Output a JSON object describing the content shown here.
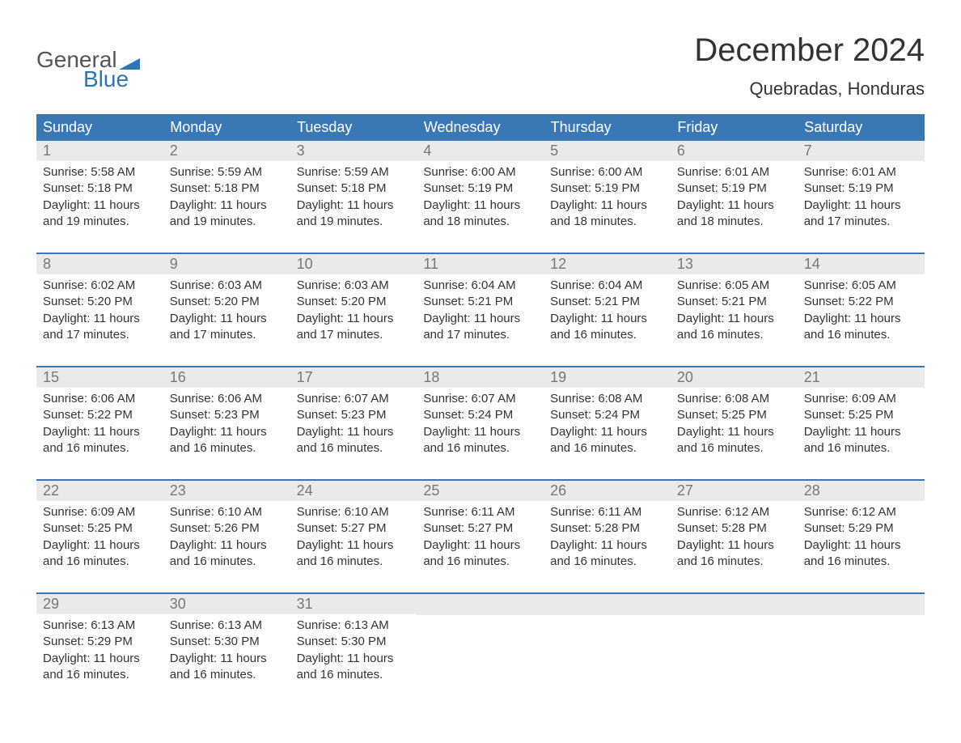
{
  "brand": {
    "part1": "General",
    "part2": "Blue",
    "text_color": "#555555",
    "accent_color": "#2f75b5"
  },
  "title": "December 2024",
  "location": "Quebradas, Honduras",
  "colors": {
    "header_bg": "#3a78b5",
    "header_text": "#ffffff",
    "daynum_bg": "#eaeaea",
    "daynum_text": "#777777",
    "body_text": "#333333",
    "page_bg": "#ffffff",
    "row_divider": "#3a78b5"
  },
  "layout": {
    "columns": 7,
    "rows": 5,
    "cell_text_fontsize": 15,
    "header_fontsize": 18,
    "title_fontsize": 40,
    "location_fontsize": 22
  },
  "weekday_labels": [
    "Sunday",
    "Monday",
    "Tuesday",
    "Wednesday",
    "Thursday",
    "Friday",
    "Saturday"
  ],
  "field_labels": {
    "sunrise": "Sunrise:",
    "sunset": "Sunset:",
    "daylight": "Daylight:"
  },
  "weeks": [
    [
      {
        "n": "1",
        "sunrise": "5:58 AM",
        "sunset": "5:18 PM",
        "daylight_l1": "11 hours",
        "daylight_l2": "and 19 minutes."
      },
      {
        "n": "2",
        "sunrise": "5:59 AM",
        "sunset": "5:18 PM",
        "daylight_l1": "11 hours",
        "daylight_l2": "and 19 minutes."
      },
      {
        "n": "3",
        "sunrise": "5:59 AM",
        "sunset": "5:18 PM",
        "daylight_l1": "11 hours",
        "daylight_l2": "and 19 minutes."
      },
      {
        "n": "4",
        "sunrise": "6:00 AM",
        "sunset": "5:19 PM",
        "daylight_l1": "11 hours",
        "daylight_l2": "and 18 minutes."
      },
      {
        "n": "5",
        "sunrise": "6:00 AM",
        "sunset": "5:19 PM",
        "daylight_l1": "11 hours",
        "daylight_l2": "and 18 minutes."
      },
      {
        "n": "6",
        "sunrise": "6:01 AM",
        "sunset": "5:19 PM",
        "daylight_l1": "11 hours",
        "daylight_l2": "and 18 minutes."
      },
      {
        "n": "7",
        "sunrise": "6:01 AM",
        "sunset": "5:19 PM",
        "daylight_l1": "11 hours",
        "daylight_l2": "and 17 minutes."
      }
    ],
    [
      {
        "n": "8",
        "sunrise": "6:02 AM",
        "sunset": "5:20 PM",
        "daylight_l1": "11 hours",
        "daylight_l2": "and 17 minutes."
      },
      {
        "n": "9",
        "sunrise": "6:03 AM",
        "sunset": "5:20 PM",
        "daylight_l1": "11 hours",
        "daylight_l2": "and 17 minutes."
      },
      {
        "n": "10",
        "sunrise": "6:03 AM",
        "sunset": "5:20 PM",
        "daylight_l1": "11 hours",
        "daylight_l2": "and 17 minutes."
      },
      {
        "n": "11",
        "sunrise": "6:04 AM",
        "sunset": "5:21 PM",
        "daylight_l1": "11 hours",
        "daylight_l2": "and 17 minutes."
      },
      {
        "n": "12",
        "sunrise": "6:04 AM",
        "sunset": "5:21 PM",
        "daylight_l1": "11 hours",
        "daylight_l2": "and 16 minutes."
      },
      {
        "n": "13",
        "sunrise": "6:05 AM",
        "sunset": "5:21 PM",
        "daylight_l1": "11 hours",
        "daylight_l2": "and 16 minutes."
      },
      {
        "n": "14",
        "sunrise": "6:05 AM",
        "sunset": "5:22 PM",
        "daylight_l1": "11 hours",
        "daylight_l2": "and 16 minutes."
      }
    ],
    [
      {
        "n": "15",
        "sunrise": "6:06 AM",
        "sunset": "5:22 PM",
        "daylight_l1": "11 hours",
        "daylight_l2": "and 16 minutes."
      },
      {
        "n": "16",
        "sunrise": "6:06 AM",
        "sunset": "5:23 PM",
        "daylight_l1": "11 hours",
        "daylight_l2": "and 16 minutes."
      },
      {
        "n": "17",
        "sunrise": "6:07 AM",
        "sunset": "5:23 PM",
        "daylight_l1": "11 hours",
        "daylight_l2": "and 16 minutes."
      },
      {
        "n": "18",
        "sunrise": "6:07 AM",
        "sunset": "5:24 PM",
        "daylight_l1": "11 hours",
        "daylight_l2": "and 16 minutes."
      },
      {
        "n": "19",
        "sunrise": "6:08 AM",
        "sunset": "5:24 PM",
        "daylight_l1": "11 hours",
        "daylight_l2": "and 16 minutes."
      },
      {
        "n": "20",
        "sunrise": "6:08 AM",
        "sunset": "5:25 PM",
        "daylight_l1": "11 hours",
        "daylight_l2": "and 16 minutes."
      },
      {
        "n": "21",
        "sunrise": "6:09 AM",
        "sunset": "5:25 PM",
        "daylight_l1": "11 hours",
        "daylight_l2": "and 16 minutes."
      }
    ],
    [
      {
        "n": "22",
        "sunrise": "6:09 AM",
        "sunset": "5:25 PM",
        "daylight_l1": "11 hours",
        "daylight_l2": "and 16 minutes."
      },
      {
        "n": "23",
        "sunrise": "6:10 AM",
        "sunset": "5:26 PM",
        "daylight_l1": "11 hours",
        "daylight_l2": "and 16 minutes."
      },
      {
        "n": "24",
        "sunrise": "6:10 AM",
        "sunset": "5:27 PM",
        "daylight_l1": "11 hours",
        "daylight_l2": "and 16 minutes."
      },
      {
        "n": "25",
        "sunrise": "6:11 AM",
        "sunset": "5:27 PM",
        "daylight_l1": "11 hours",
        "daylight_l2": "and 16 minutes."
      },
      {
        "n": "26",
        "sunrise": "6:11 AM",
        "sunset": "5:28 PM",
        "daylight_l1": "11 hours",
        "daylight_l2": "and 16 minutes."
      },
      {
        "n": "27",
        "sunrise": "6:12 AM",
        "sunset": "5:28 PM",
        "daylight_l1": "11 hours",
        "daylight_l2": "and 16 minutes."
      },
      {
        "n": "28",
        "sunrise": "6:12 AM",
        "sunset": "5:29 PM",
        "daylight_l1": "11 hours",
        "daylight_l2": "and 16 minutes."
      }
    ],
    [
      {
        "n": "29",
        "sunrise": "6:13 AM",
        "sunset": "5:29 PM",
        "daylight_l1": "11 hours",
        "daylight_l2": "and 16 minutes."
      },
      {
        "n": "30",
        "sunrise": "6:13 AM",
        "sunset": "5:30 PM",
        "daylight_l1": "11 hours",
        "daylight_l2": "and 16 minutes."
      },
      {
        "n": "31",
        "sunrise": "6:13 AM",
        "sunset": "5:30 PM",
        "daylight_l1": "11 hours",
        "daylight_l2": "and 16 minutes."
      },
      null,
      null,
      null,
      null
    ]
  ]
}
